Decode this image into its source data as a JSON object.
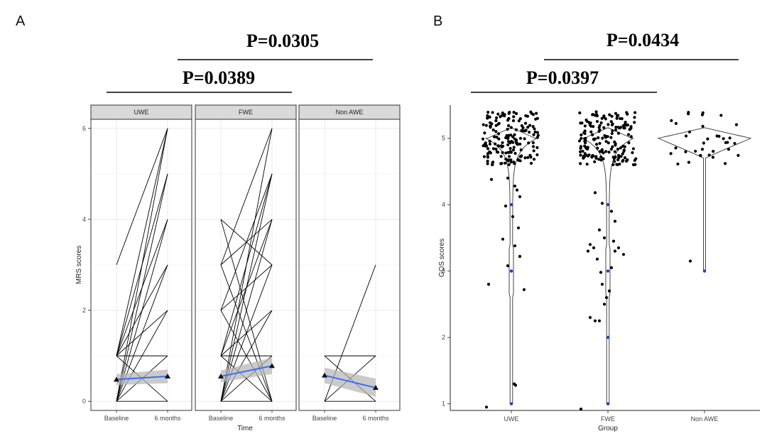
{
  "figure": {
    "panel_a_label": "A",
    "panel_b_label": "B"
  },
  "colors": {
    "trend": "#3366ff",
    "ribbon": "#b3b3b3",
    "strip": "#d9d9d9",
    "grid": "#ebebeb",
    "points": "#000000",
    "median": "#1f3fcc"
  },
  "chart_data": [
    {
      "type": "line",
      "panel": "A",
      "xlabel": "Time",
      "ylabel": "MRS scores",
      "x_categories": [
        "Baseline",
        "6 months"
      ],
      "ylim": [
        -0.2,
        6.2
      ],
      "yticks": [
        0,
        2,
        4,
        6
      ],
      "grid": true,
      "facets": [
        {
          "name": "UWE",
          "pairs": [
            [
              0,
              0
            ],
            [
              0,
              1
            ],
            [
              0,
              2
            ],
            [
              0,
              3
            ],
            [
              0,
              5
            ],
            [
              0,
              6
            ],
            [
              1,
              0
            ],
            [
              1,
              1
            ],
            [
              1,
              3
            ],
            [
              1,
              4
            ],
            [
              1,
              5
            ],
            [
              1,
              6
            ],
            [
              3,
              6
            ],
            [
              0,
              4
            ],
            [
              1,
              2
            ]
          ],
          "mean": [
            0.48,
            0.55
          ],
          "ci_low": [
            0.36,
            0.4
          ],
          "ci_high": [
            0.6,
            0.7
          ]
        },
        {
          "name": "FWE",
          "pairs": [
            [
              0,
              0
            ],
            [
              0,
              1
            ],
            [
              0,
              2
            ],
            [
              0,
              3
            ],
            [
              0,
              4
            ],
            [
              0,
              5
            ],
            [
              0,
              6
            ],
            [
              1,
              0
            ],
            [
              1,
              1
            ],
            [
              1,
              2
            ],
            [
              1,
              4
            ],
            [
              1,
              5
            ],
            [
              2,
              0
            ],
            [
              2,
              3
            ],
            [
              2,
              5
            ],
            [
              3,
              0
            ],
            [
              3,
              4
            ],
            [
              3,
              6
            ],
            [
              4,
              0
            ],
            [
              4,
              3
            ]
          ],
          "mean": [
            0.55,
            0.78
          ],
          "ci_low": [
            0.42,
            0.6
          ],
          "ci_high": [
            0.68,
            0.96
          ]
        },
        {
          "name": "Non AWE",
          "pairs": [
            [
              0,
              0
            ],
            [
              0,
              1
            ],
            [
              0,
              3
            ],
            [
              1,
              0
            ],
            [
              1,
              1
            ]
          ],
          "mean": [
            0.57,
            0.3
          ],
          "ci_low": [
            0.4,
            0.1
          ],
          "ci_high": [
            0.74,
            0.5
          ]
        }
      ],
      "comparisons": [
        {
          "label": "P=0.0389",
          "from": "UWE",
          "to": "FWE"
        },
        {
          "label": "P=0.0305",
          "from": "FWE",
          "to": "Non AWE"
        }
      ]
    },
    {
      "type": "scatter",
      "panel": "B",
      "xlabel": "Group",
      "ylabel": "GOS scores",
      "categories": [
        "UWE",
        "FWE",
        "Non AWE"
      ],
      "ylim": [
        0.9,
        5.5
      ],
      "yticks": [
        1,
        2,
        3,
        4,
        5
      ],
      "grid": false,
      "groups": [
        {
          "name": "UWE",
          "n_at_5": 170,
          "lower_points": [
            [
              -0.28,
              4.38
            ],
            [
              0.05,
              4.28
            ],
            [
              0.12,
              4.12
            ],
            [
              -0.08,
              3.98
            ],
            [
              0.02,
              3.82
            ],
            [
              0.1,
              3.65
            ],
            [
              -0.12,
              3.48
            ],
            [
              0.05,
              3.38
            ],
            [
              0.12,
              3.22
            ],
            [
              -0.05,
              3.08
            ],
            [
              0.0,
              3.0
            ],
            [
              -0.32,
              2.8
            ],
            [
              0.18,
              2.72
            ],
            [
              -0.05,
              4.4
            ],
            [
              0.08,
              4.22
            ],
            [
              0.04,
              1.3
            ],
            [
              0.06,
              1.28
            ],
            [
              -0.35,
              0.95
            ]
          ],
          "medians": [
            4,
            3,
            1
          ]
        },
        {
          "name": "FWE",
          "n_at_5": 170,
          "lower_points": [
            [
              -0.18,
              4.18
            ],
            [
              -0.08,
              4.02
            ],
            [
              0.05,
              3.9
            ],
            [
              0.1,
              3.75
            ],
            [
              -0.12,
              3.62
            ],
            [
              -0.05,
              3.5
            ],
            [
              0.08,
              3.45
            ],
            [
              -0.25,
              3.4
            ],
            [
              -0.2,
              3.35
            ],
            [
              -0.28,
              3.3
            ],
            [
              0.15,
              3.35
            ],
            [
              0.1,
              3.3
            ],
            [
              0.22,
              3.25
            ],
            [
              -0.15,
              3.18
            ],
            [
              0.05,
              3.05
            ],
            [
              -0.1,
              2.98
            ],
            [
              -0.08,
              2.8
            ],
            [
              0.02,
              2.7
            ],
            [
              -0.02,
              2.6
            ],
            [
              -0.25,
              2.3
            ],
            [
              -0.18,
              2.25
            ],
            [
              -0.12,
              2.25
            ],
            [
              -0.05,
              2.5
            ],
            [
              -0.38,
              0.92
            ]
          ],
          "medians": [
            4,
            3,
            2,
            1
          ]
        },
        {
          "name": "Non AWE",
          "n_at_5": 35,
          "lower_points": [
            [
              -0.2,
              3.15
            ]
          ],
          "medians": [
            3
          ]
        }
      ],
      "comparisons": [
        {
          "label": "P=0.0397",
          "from": "UWE",
          "to": "FWE"
        },
        {
          "label": "P=0.0434",
          "from": "FWE",
          "to": "Non AWE"
        }
      ]
    }
  ]
}
